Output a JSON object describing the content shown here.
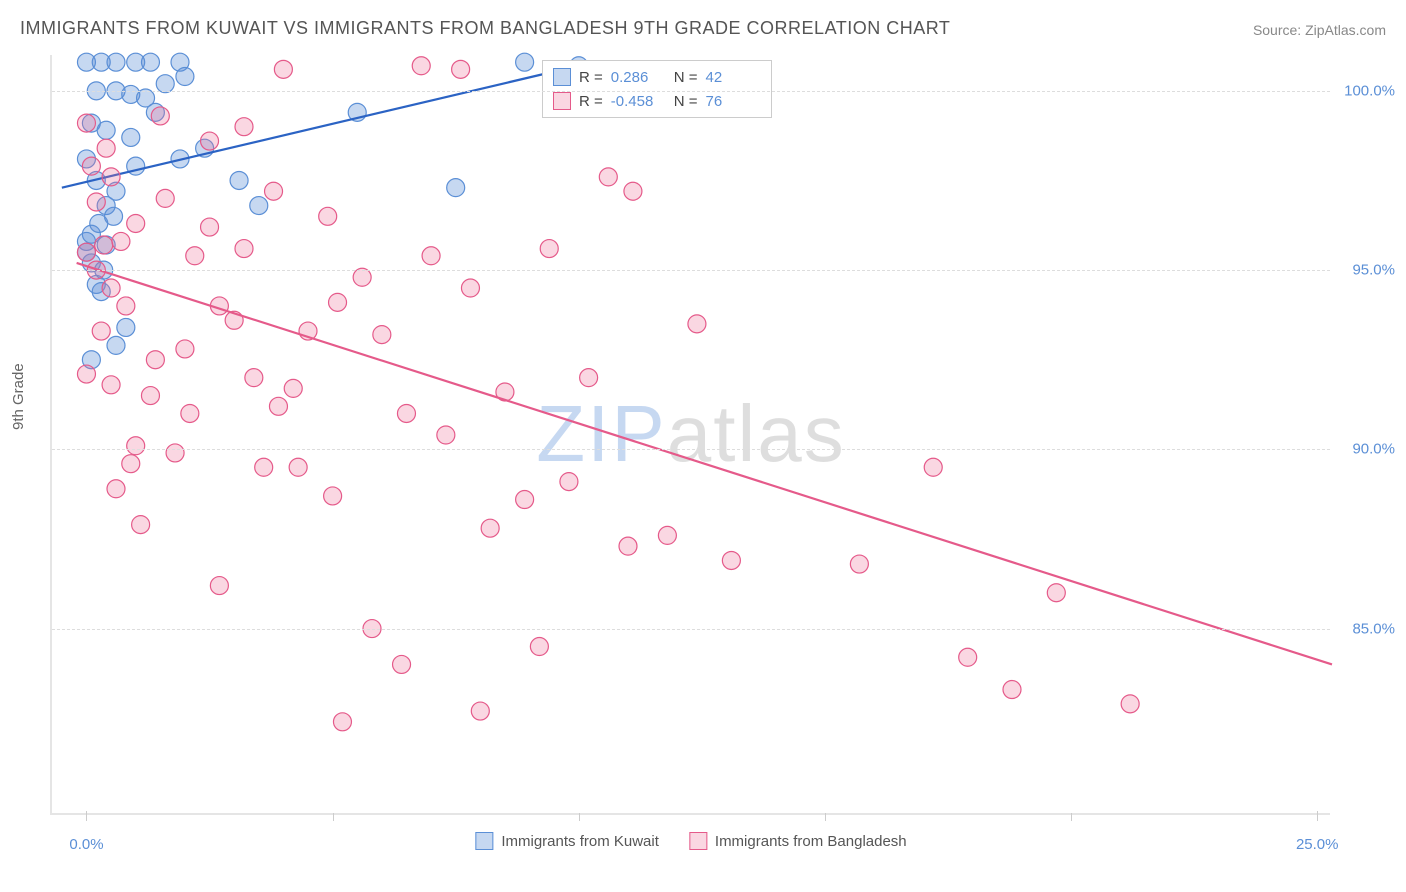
{
  "title": "IMMIGRANTS FROM KUWAIT VS IMMIGRANTS FROM BANGLADESH 9TH GRADE CORRELATION CHART",
  "source_label": "Source:",
  "source_name": "ZipAtlas.com",
  "ylabel": "9th Grade",
  "watermark_z": "ZIP",
  "watermark_rest": "atlas",
  "chart": {
    "type": "scatter",
    "background_color": "#ffffff",
    "grid_color": "#dddddd",
    "axis_color": "#e5e5e5",
    "xlim": [
      -0.7,
      25.3
    ],
    "ylim": [
      79.8,
      101.0
    ],
    "xticks": [
      0.0,
      25.0
    ],
    "xtick_minor": [
      5.0,
      10.0,
      15.0,
      20.0
    ],
    "yticks": [
      85.0,
      90.0,
      95.0,
      100.0
    ],
    "ytick_labels": [
      "85.0%",
      "90.0%",
      "95.0%",
      "100.0%"
    ],
    "xtick_labels": [
      "0.0%",
      "25.0%"
    ],
    "ylabel_fontsize": 15,
    "tick_fontsize": 15,
    "tick_color": "#5b8fd6"
  },
  "series": [
    {
      "name": "Immigrants from Kuwait",
      "color_fill": "rgba(91,143,214,0.35)",
      "color_stroke": "#5b8fd6",
      "line_color": "#2b63c4",
      "R": "0.286",
      "N": "42",
      "regression": {
        "x1": -0.5,
        "y1": 97.3,
        "x2": 10.0,
        "y2": 100.7
      },
      "points": [
        [
          0.0,
          100.8
        ],
        [
          0.3,
          100.8
        ],
        [
          0.6,
          100.8
        ],
        [
          1.0,
          100.8
        ],
        [
          1.3,
          100.8
        ],
        [
          1.9,
          100.8
        ],
        [
          0.2,
          100.0
        ],
        [
          0.6,
          100.0
        ],
        [
          0.9,
          99.9
        ],
        [
          1.2,
          99.8
        ],
        [
          1.6,
          100.2
        ],
        [
          2.0,
          100.4
        ],
        [
          0.1,
          99.1
        ],
        [
          0.4,
          98.9
        ],
        [
          0.9,
          98.7
        ],
        [
          1.4,
          99.4
        ],
        [
          1.0,
          97.9
        ],
        [
          0.0,
          98.1
        ],
        [
          0.2,
          97.5
        ],
        [
          0.4,
          96.8
        ],
        [
          0.6,
          97.2
        ],
        [
          0.1,
          96.0
        ],
        [
          0.0,
          95.8
        ],
        [
          0.1,
          95.2
        ],
        [
          0.2,
          94.6
        ],
        [
          0.35,
          95.0
        ],
        [
          0.3,
          94.4
        ],
        [
          0.0,
          95.5
        ],
        [
          0.25,
          96.3
        ],
        [
          0.4,
          95.7
        ],
        [
          0.55,
          96.5
        ],
        [
          1.9,
          98.1
        ],
        [
          2.4,
          98.4
        ],
        [
          3.1,
          97.5
        ],
        [
          3.5,
          96.8
        ],
        [
          5.5,
          99.4
        ],
        [
          7.5,
          97.3
        ],
        [
          8.9,
          100.8
        ],
        [
          10.0,
          100.7
        ],
        [
          0.6,
          92.9
        ],
        [
          0.8,
          93.4
        ],
        [
          0.1,
          92.5
        ]
      ]
    },
    {
      "name": "Immigrants from Bangladesh",
      "color_fill": "rgba(236,110,150,0.28)",
      "color_stroke": "#e55a8a",
      "line_color": "#e55a8a",
      "R": "-0.458",
      "N": "76",
      "regression": {
        "x1": -0.2,
        "y1": 95.2,
        "x2": 25.3,
        "y2": 84.0
      },
      "points": [
        [
          0.0,
          95.5
        ],
        [
          0.2,
          95.0
        ],
        [
          0.35,
          95.7
        ],
        [
          0.5,
          94.5
        ],
        [
          0.7,
          95.8
        ],
        [
          0.2,
          96.9
        ],
        [
          0.5,
          97.6
        ],
        [
          0.0,
          99.1
        ],
        [
          1.5,
          99.3
        ],
        [
          2.5,
          98.6
        ],
        [
          3.2,
          99.0
        ],
        [
          1.0,
          96.3
        ],
        [
          1.6,
          97.0
        ],
        [
          2.2,
          95.4
        ],
        [
          2.7,
          94.0
        ],
        [
          0.5,
          91.8
        ],
        [
          1.0,
          90.1
        ],
        [
          1.3,
          91.5
        ],
        [
          1.8,
          89.9
        ],
        [
          2.1,
          91.0
        ],
        [
          3.0,
          93.6
        ],
        [
          3.4,
          92.0
        ],
        [
          3.9,
          91.2
        ],
        [
          4.5,
          93.3
        ],
        [
          4.2,
          91.7
        ],
        [
          5.1,
          94.1
        ],
        [
          5.6,
          94.8
        ],
        [
          6.0,
          93.2
        ],
        [
          6.5,
          91.0
        ],
        [
          7.0,
          95.4
        ],
        [
          7.3,
          90.4
        ],
        [
          7.8,
          94.5
        ],
        [
          8.2,
          87.8
        ],
        [
          8.5,
          91.6
        ],
        [
          8.9,
          88.6
        ],
        [
          9.4,
          95.6
        ],
        [
          9.8,
          89.1
        ],
        [
          10.2,
          92.0
        ],
        [
          10.6,
          97.6
        ],
        [
          11.1,
          97.2
        ],
        [
          11.0,
          87.3
        ],
        [
          11.8,
          87.6
        ],
        [
          12.4,
          93.5
        ],
        [
          13.1,
          86.9
        ],
        [
          4.3,
          89.5
        ],
        [
          5.0,
          88.7
        ],
        [
          5.8,
          85.0
        ],
        [
          5.2,
          82.4
        ],
        [
          2.7,
          86.2
        ],
        [
          3.6,
          89.5
        ],
        [
          0.9,
          89.6
        ],
        [
          1.4,
          92.5
        ],
        [
          0.3,
          93.3
        ],
        [
          0.0,
          92.1
        ],
        [
          0.6,
          88.9
        ],
        [
          1.1,
          87.9
        ],
        [
          6.8,
          100.7
        ],
        [
          7.6,
          100.6
        ],
        [
          4.0,
          100.6
        ],
        [
          4.9,
          96.5
        ],
        [
          15.7,
          86.8
        ],
        [
          17.2,
          89.5
        ],
        [
          17.9,
          84.2
        ],
        [
          18.8,
          83.3
        ],
        [
          21.2,
          82.9
        ],
        [
          19.7,
          86.0
        ],
        [
          8.0,
          82.7
        ],
        [
          9.2,
          84.5
        ],
        [
          6.4,
          84.0
        ],
        [
          2.0,
          92.8
        ],
        [
          2.5,
          96.2
        ],
        [
          3.2,
          95.6
        ],
        [
          3.8,
          97.2
        ],
        [
          0.1,
          97.9
        ],
        [
          0.4,
          98.4
        ],
        [
          0.8,
          94.0
        ]
      ]
    }
  ],
  "legend": {
    "r_label": "R  =",
    "n_label": "N  ="
  }
}
